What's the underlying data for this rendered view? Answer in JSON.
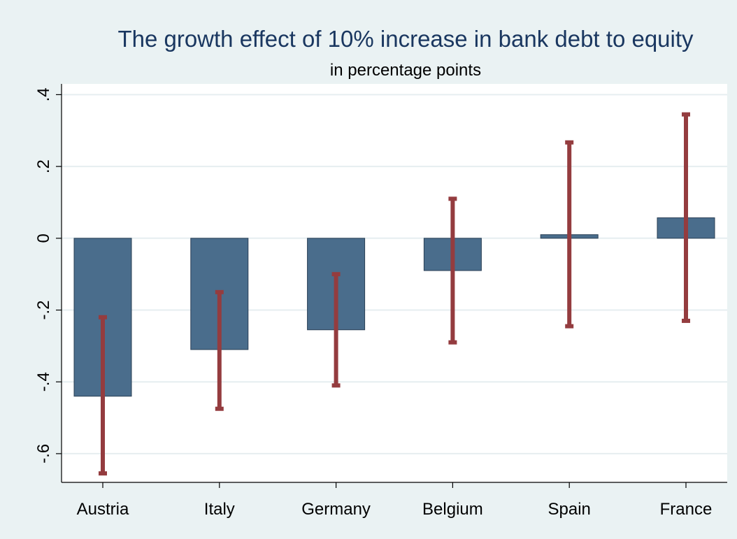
{
  "chart_data": {
    "type": "bar",
    "title": "The growth effect of 10% increase in bank debt to equity",
    "subtitle": "in percentage points",
    "xlabel": "",
    "ylabel": "",
    "categories": [
      "Austria",
      "Italy",
      "Germany",
      "Belgium",
      "Spain",
      "France"
    ],
    "values": [
      -0.44,
      -0.31,
      -0.255,
      -0.09,
      0.01,
      0.057
    ],
    "ci_lower": [
      -0.655,
      -0.475,
      -0.41,
      -0.29,
      -0.245,
      -0.23
    ],
    "ci_upper": [
      -0.22,
      -0.15,
      -0.1,
      0.11,
      0.267,
      0.345
    ],
    "ylim": [
      -0.68,
      0.43
    ],
    "yticks": [
      -0.6,
      -0.4,
      -0.2,
      0,
      0.2,
      0.4
    ],
    "ytick_labels": [
      "-.6",
      "-.4",
      "-.2",
      "0",
      ".2",
      ".4"
    ],
    "grid": true,
    "bar_color": "#4a6d8c",
    "errorbar_color": "#943c3f",
    "legend": "none"
  }
}
